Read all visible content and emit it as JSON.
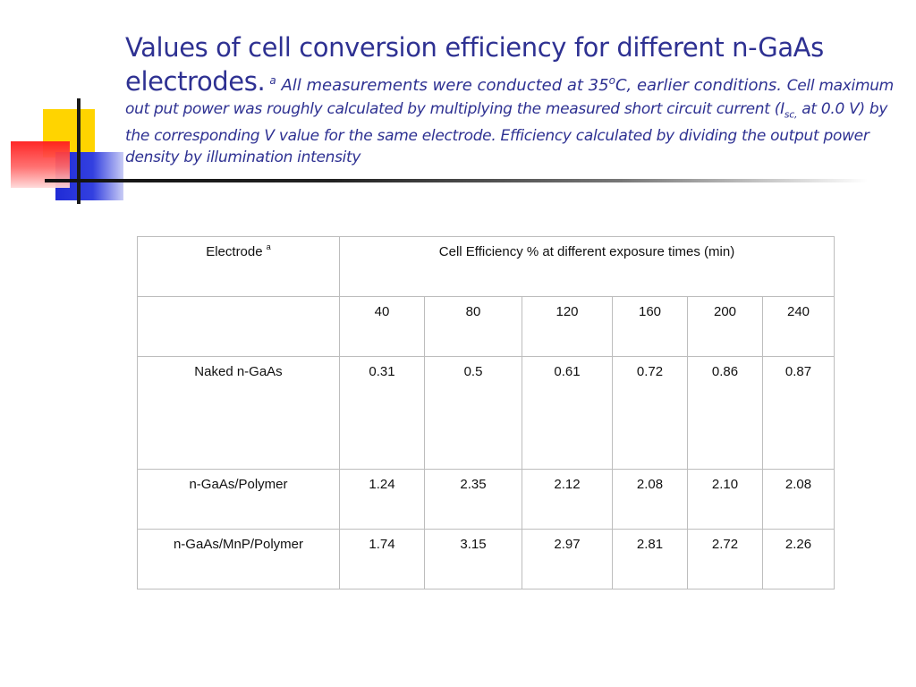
{
  "title": {
    "main": "Values of cell conversion efficiency for different n-GaAs electrodes.",
    "note_marker": "a",
    "note_1": " All measurements were conducted at 35",
    "degree_sup": "o",
    "note_2": "C, earlier conditions. ",
    "note_3": "Cell maximum out put power was roughly calculated by multiplying the measured short circuit current (I",
    "sub": "sc,",
    "note_4": "  at 0.0 V) by the corresponding V value for the same electrode. Efficiency calculated by dividing the output power density by illumination intensity"
  },
  "table": {
    "header_electrode": "Electrode",
    "header_electrode_sup": "a",
    "header_efficiency": "Cell Efficiency % at different exposure times (min)",
    "times": [
      "40",
      "80",
      "120",
      "160",
      "200",
      "240"
    ],
    "rows": [
      {
        "electrode": "Naked n-GaAs",
        "values": [
          "0.31",
          "0.5",
          "0.61",
          "0.72",
          "0.86",
          "0.87"
        ]
      },
      {
        "electrode": "n-GaAs/Polymer",
        "values": [
          "1.24",
          "2.35",
          "2.12",
          "2.08",
          "2.10",
          "2.08"
        ]
      },
      {
        "electrode": "n-GaAs/MnP/Polymer",
        "values": [
          "1.74",
          "3.15",
          "2.97",
          "2.81",
          "2.72",
          "2.26"
        ]
      }
    ]
  },
  "colors": {
    "title": "#2e3192",
    "deco_yellow": "#ffd400",
    "deco_blue": "#1f2bd6",
    "deco_red": "#ff1c1c"
  }
}
